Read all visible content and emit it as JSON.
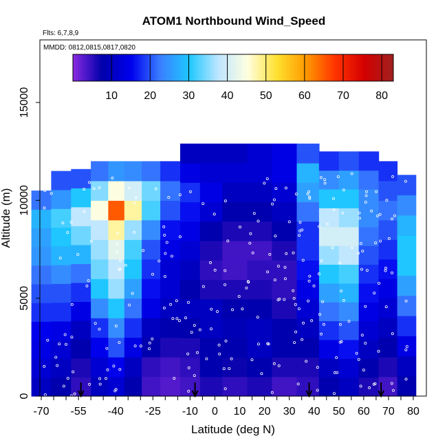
{
  "chart_data": {
    "type": "heatmap",
    "title": "ATOM1 Northbound Wind_Speed",
    "flights_note": "Flts: 6,7,8,9",
    "dates_note": "MMDD: 0812,0815,0817,0820",
    "xlabel": "Latitude (deg N)",
    "ylabel": "Altitude (m)",
    "xlim": [
      -70,
      80
    ],
    "ylim": [
      0,
      17500
    ],
    "x_ticks": [
      -70,
      -55,
      -40,
      -25,
      -10,
      0,
      10,
      20,
      30,
      40,
      50,
      60,
      70,
      80
    ],
    "y_ticks": [
      0,
      5000,
      10000,
      15000
    ],
    "colorbar": {
      "range": [
        0,
        83
      ],
      "ticks": [
        10,
        20,
        30,
        40,
        50,
        60,
        70,
        80
      ],
      "colors": [
        "#8a2be2",
        "#0000aa",
        "#0000ee",
        "#3a7fff",
        "#1ec8ff",
        "#bfe6ff",
        "#ffffe0",
        "#ffe030",
        "#ff9900",
        "#ff3300",
        "#d40000",
        "#a02020"
      ]
    },
    "field_columns": [
      {
        "lat": -70,
        "bottom": 0,
        "top": 10500,
        "v": [
          10,
          12,
          14,
          15,
          18,
          20,
          22,
          25,
          26,
          28,
          22
        ]
      },
      {
        "lat": -62,
        "bottom": 0,
        "top": 11500,
        "v": [
          8,
          10,
          12,
          14,
          18,
          20,
          24,
          28,
          30,
          32,
          25,
          20
        ]
      },
      {
        "lat": -54,
        "bottom": 0,
        "top": 11600,
        "v": [
          5,
          6,
          8,
          10,
          14,
          18,
          22,
          28,
          34,
          38,
          30,
          20
        ]
      },
      {
        "lat": -46,
        "bottom": 0,
        "top": 12000,
        "v": [
          10,
          12,
          15,
          18,
          24,
          30,
          34,
          36,
          38,
          45,
          35,
          22
        ]
      },
      {
        "lat": -40,
        "bottom": 0,
        "top": 12000,
        "v": [
          12,
          15,
          20,
          24,
          30,
          36,
          38,
          42,
          48,
          65,
          45,
          25
        ]
      },
      {
        "lat": -33,
        "bottom": 0,
        "top": 12000,
        "v": [
          8,
          10,
          14,
          18,
          22,
          26,
          30,
          32,
          36,
          48,
          40,
          24
        ]
      },
      {
        "lat": -26,
        "bottom": 0,
        "top": 12000,
        "v": [
          4,
          5,
          8,
          10,
          14,
          16,
          18,
          20,
          24,
          32,
          34,
          22
        ]
      },
      {
        "lat": -18,
        "bottom": 0,
        "top": 12000,
        "v": [
          3,
          4,
          6,
          8,
          10,
          12,
          12,
          14,
          16,
          20,
          22,
          18
        ]
      },
      {
        "lat": -10,
        "bottom": 0,
        "top": 12900,
        "v": [
          4,
          5,
          6,
          8,
          10,
          8,
          10,
          12,
          14,
          16,
          18,
          14,
          10
        ]
      },
      {
        "lat": -2,
        "bottom": 0,
        "top": 12900,
        "v": [
          6,
          8,
          8,
          10,
          10,
          6,
          5,
          6,
          8,
          12,
          14,
          12,
          10
        ]
      },
      {
        "lat": 8,
        "bottom": 0,
        "top": 12900,
        "v": [
          5,
          7,
          8,
          9,
          8,
          6,
          4,
          4,
          6,
          8,
          10,
          12,
          10
        ]
      },
      {
        "lat": 18,
        "bottom": 0,
        "top": 12900,
        "v": [
          6,
          8,
          10,
          10,
          8,
          6,
          5,
          4,
          6,
          8,
          10,
          12,
          12
        ]
      },
      {
        "lat": 28,
        "bottom": 0,
        "top": 12900,
        "v": [
          4,
          6,
          8,
          8,
          6,
          5,
          5,
          6,
          8,
          10,
          12,
          14,
          14
        ]
      },
      {
        "lat": 38,
        "bottom": 0,
        "top": 12900,
        "v": [
          5,
          6,
          8,
          10,
          12,
          14,
          16,
          18,
          18,
          22,
          26,
          28,
          20
        ]
      },
      {
        "lat": 46,
        "bottom": 0,
        "top": 12500,
        "v": [
          8,
          10,
          14,
          18,
          22,
          26,
          30,
          36,
          40,
          38,
          30,
          24,
          18
        ]
      },
      {
        "lat": 54,
        "bottom": 0,
        "top": 12500,
        "v": [
          10,
          12,
          16,
          20,
          24,
          28,
          32,
          38,
          40,
          36,
          30,
          26,
          20
        ]
      },
      {
        "lat": 62,
        "bottom": 0,
        "top": 12500,
        "v": [
          6,
          8,
          10,
          12,
          14,
          16,
          18,
          20,
          22,
          24,
          24,
          22,
          18
        ]
      },
      {
        "lat": 70,
        "bottom": 0,
        "top": 12000,
        "v": [
          4,
          6,
          8,
          10,
          12,
          14,
          16,
          18,
          20,
          22,
          20,
          18
        ]
      },
      {
        "lat": 77,
        "bottom": 0,
        "top": 11300,
        "v": [
          8,
          10,
          14,
          18,
          22,
          26,
          30,
          30,
          28,
          24,
          20
        ]
      }
    ],
    "flight_track_markers_lat": [
      -54,
      -8,
      38,
      67
    ]
  }
}
